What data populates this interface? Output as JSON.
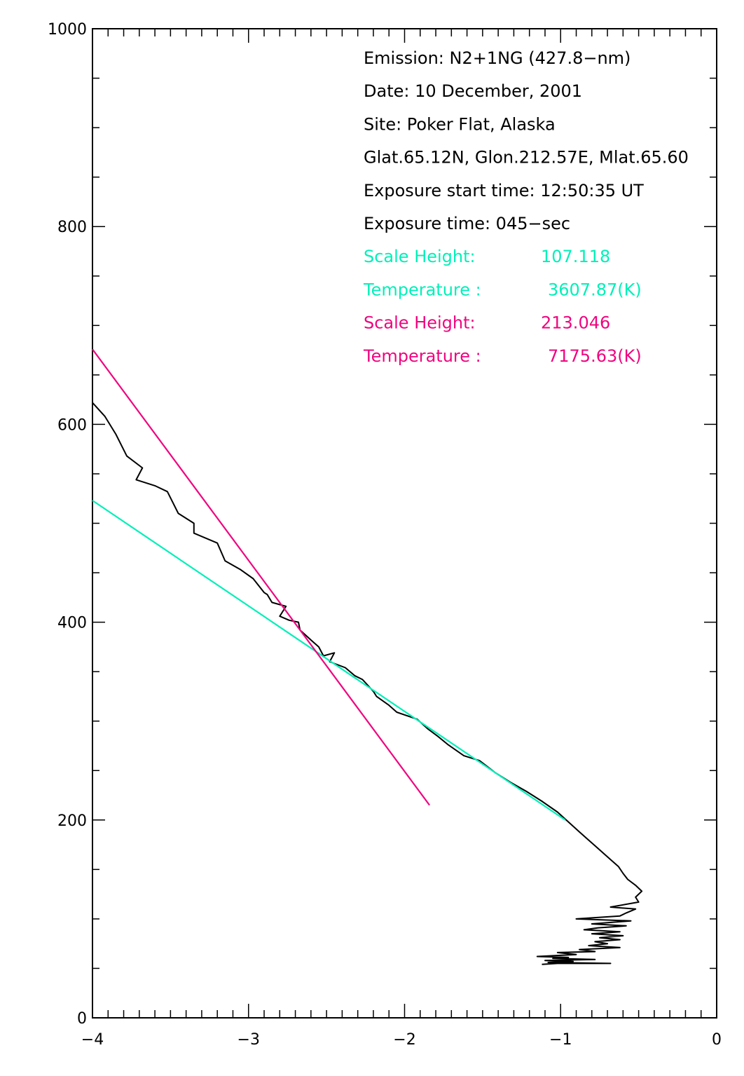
{
  "chart_data": {
    "type": "line",
    "xlim": [
      -4,
      0
    ],
    "ylim": [
      0,
      1000
    ],
    "xticks": [
      -4,
      -3,
      -2,
      -1,
      0
    ],
    "xtick_labels": [
      "−4",
      "−3",
      "−2",
      "−1",
      "0"
    ],
    "yticks": [
      0,
      200,
      400,
      600,
      800,
      1000
    ],
    "ytick_labels": [
      "0",
      "200",
      "400",
      "600",
      "800",
      "1000"
    ],
    "x_minor_step": 0.1,
    "y_minor_step": 50,
    "grid": false,
    "colors": {
      "profile": "#000000",
      "fit1": "#00f0b8",
      "fit2": "#f0047f"
    },
    "annotations": [
      {
        "text": "Emission: N2+1NG (427.8−nm)",
        "color": "#000000"
      },
      {
        "text": "Date: 10 December, 2001",
        "color": "#000000"
      },
      {
        "text": "Site: Poker Flat, Alaska",
        "color": "#000000"
      },
      {
        "text": "Glat.65.12N, Glon.212.57E, Mlat.65.60",
        "color": "#000000"
      },
      {
        "text": "Exposure start time: 12:50:35 UT",
        "color": "#000000"
      },
      {
        "text": "Exposure time: 045−sec",
        "color": "#000000"
      },
      {
        "text": "Scale Height:",
        "value": "107.118",
        "color": "#00f0b8"
      },
      {
        "text": "Temperature :",
        "value": "3607.87(K)",
        "color": "#00f0b8"
      },
      {
        "text": "Scale Height:",
        "value": "213.046",
        "color": "#f0047f"
      },
      {
        "text": "Temperature :",
        "value": "7175.63(K)",
        "color": "#f0047f"
      }
    ],
    "series": [
      {
        "color": "#000000",
        "points": [
          [
            -4.0,
            622
          ],
          [
            -3.92,
            608
          ],
          [
            -3.85,
            590
          ],
          [
            -3.78,
            568
          ],
          [
            -3.68,
            556
          ],
          [
            -3.72,
            544
          ],
          [
            -3.6,
            538
          ],
          [
            -3.52,
            532
          ],
          [
            -3.45,
            510
          ],
          [
            -3.35,
            500
          ],
          [
            -3.35,
            490
          ],
          [
            -3.2,
            480
          ],
          [
            -3.15,
            462
          ],
          [
            -3.05,
            453
          ],
          [
            -2.97,
            444
          ],
          [
            -2.9,
            430
          ],
          [
            -2.88,
            428
          ],
          [
            -2.85,
            420
          ],
          [
            -2.76,
            416
          ],
          [
            -2.8,
            406
          ],
          [
            -2.74,
            402
          ],
          [
            -2.68,
            400
          ],
          [
            -2.67,
            392
          ],
          [
            -2.6,
            382
          ],
          [
            -2.55,
            375
          ],
          [
            -2.52,
            366
          ],
          [
            -2.45,
            369
          ],
          [
            -2.48,
            360
          ],
          [
            -2.38,
            354
          ],
          [
            -2.32,
            346
          ],
          [
            -2.27,
            342
          ],
          [
            -2.24,
            337
          ],
          [
            -2.2,
            330
          ],
          [
            -2.18,
            325
          ],
          [
            -2.1,
            316
          ],
          [
            -2.05,
            309
          ],
          [
            -1.92,
            302
          ],
          [
            -1.85,
            292
          ],
          [
            -1.79,
            285
          ],
          [
            -1.72,
            276
          ],
          [
            -1.62,
            265
          ],
          [
            -1.52,
            260
          ],
          [
            -1.42,
            248
          ],
          [
            -1.32,
            238
          ],
          [
            -1.22,
            229
          ],
          [
            -1.12,
            219
          ],
          [
            -1.02,
            208
          ],
          [
            -0.95,
            198
          ],
          [
            -0.88,
            188
          ],
          [
            -0.83,
            181
          ],
          [
            -0.78,
            174
          ],
          [
            -0.73,
            167
          ],
          [
            -0.68,
            160
          ],
          [
            -0.63,
            153
          ],
          [
            -0.6,
            146
          ],
          [
            -0.57,
            140
          ],
          [
            -0.52,
            134
          ],
          [
            -0.48,
            128
          ],
          [
            -0.52,
            122
          ],
          [
            -0.5,
            117
          ],
          [
            -0.68,
            112
          ],
          [
            -0.52,
            110
          ],
          [
            -0.58,
            106
          ],
          [
            -0.62,
            103
          ],
          [
            -0.9,
            100
          ],
          [
            -0.55,
            98
          ],
          [
            -0.8,
            95
          ],
          [
            -0.58,
            93
          ],
          [
            -0.76,
            91
          ],
          [
            -0.85,
            89
          ],
          [
            -0.62,
            87
          ],
          [
            -0.8,
            85
          ],
          [
            -0.6,
            83
          ],
          [
            -0.75,
            81
          ],
          [
            -0.62,
            79
          ],
          [
            -0.78,
            77
          ],
          [
            -0.7,
            75
          ],
          [
            -0.82,
            73
          ],
          [
            -0.62,
            71
          ],
          [
            -0.88,
            69
          ],
          [
            -0.78,
            67
          ],
          [
            -1.02,
            66
          ],
          [
            -0.9,
            64
          ],
          [
            -1.15,
            62
          ],
          [
            -0.95,
            61
          ],
          [
            -1.05,
            60
          ],
          [
            -0.78,
            59
          ],
          [
            -1.1,
            58
          ],
          [
            -0.92,
            57
          ],
          [
            -1.08,
            56
          ],
          [
            -0.68,
            55
          ],
          [
            -1.02,
            55
          ],
          [
            -1.12,
            54
          ]
        ]
      },
      {
        "color": "#00f0b8",
        "points": [
          [
            -4.0,
            523
          ],
          [
            -0.97,
            200
          ]
        ]
      },
      {
        "color": "#f0047f",
        "points": [
          [
            -4.0,
            676
          ],
          [
            -1.84,
            215
          ]
        ]
      }
    ]
  }
}
